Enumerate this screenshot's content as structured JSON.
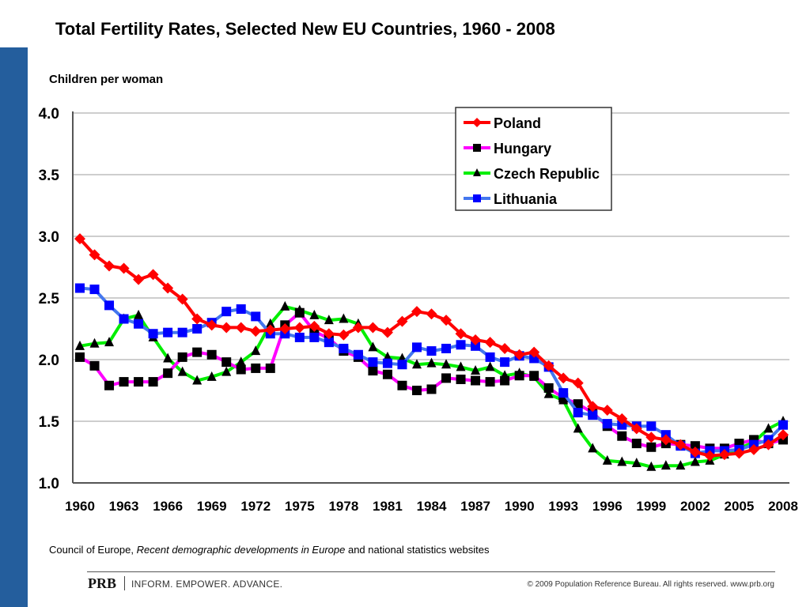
{
  "header": {
    "title": "Total Fertility Rates, Selected New EU Countries, 1960 - 2008",
    "y_unit_label": "Children per woman"
  },
  "footer": {
    "source_prefix": "Council of Europe, ",
    "source_italic": "Recent demographic developments in Europe",
    "source_suffix": " and national statistics websites",
    "brand": "PRB",
    "tagline": "INFORM. EMPOWER. ADVANCE.",
    "copyright": "© 2009 Population Reference Bureau. All rights reserved. www.prb.org"
  },
  "colors": {
    "sidebar": "#245e9d",
    "poland": "#ff0000",
    "hungary": "#ff00ff",
    "czech": "#00ee00",
    "lithuania": "#4477ee",
    "marker_lithuania": "#0000ff",
    "marker_dark": "#000000"
  },
  "chart_data": {
    "type": "line",
    "title": "Total Fertility Rates, Selected New EU Countries, 1960 - 2008",
    "xlabel": "",
    "ylabel": "Children per woman",
    "ylim": [
      1.0,
      4.0
    ],
    "xlim": [
      1960,
      2008
    ],
    "yticks": [
      "1.0",
      "1.5",
      "2.0",
      "2.5",
      "3.0",
      "3.5",
      "4.0"
    ],
    "ytick_values": [
      1.0,
      1.5,
      2.0,
      2.5,
      3.0,
      3.5,
      4.0
    ],
    "xticks": [
      "1960",
      "1963",
      "1966",
      "1969",
      "1972",
      "1975",
      "1978",
      "1981",
      "1984",
      "1987",
      "1990",
      "1993",
      "1996",
      "1999",
      "2002",
      "2005",
      "2008"
    ],
    "grid": true,
    "legend_position": "top-right",
    "x": [
      1960,
      1961,
      1962,
      1963,
      1964,
      1965,
      1966,
      1967,
      1968,
      1969,
      1970,
      1971,
      1972,
      1973,
      1974,
      1975,
      1976,
      1977,
      1978,
      1979,
      1980,
      1981,
      1982,
      1983,
      1984,
      1985,
      1986,
      1987,
      1988,
      1989,
      1990,
      1991,
      1992,
      1993,
      1994,
      1995,
      1996,
      1997,
      1998,
      1999,
      2000,
      2001,
      2002,
      2003,
      2004,
      2005,
      2006,
      2007,
      2008
    ],
    "series": [
      {
        "name": "Poland",
        "marker": "diamond",
        "color_key": "poland",
        "values": [
          2.98,
          2.85,
          2.76,
          2.74,
          2.65,
          2.69,
          2.58,
          2.49,
          2.33,
          2.28,
          2.26,
          2.26,
          2.23,
          2.24,
          2.25,
          2.26,
          2.27,
          2.21,
          2.2,
          2.26,
          2.26,
          2.22,
          2.31,
          2.39,
          2.37,
          2.32,
          2.21,
          2.16,
          2.14,
          2.09,
          2.04,
          2.06,
          1.95,
          1.85,
          1.81,
          1.62,
          1.59,
          1.52,
          1.44,
          1.37,
          1.35,
          1.31,
          1.25,
          1.22,
          1.23,
          1.24,
          1.27,
          1.31,
          1.39
        ]
      },
      {
        "name": "Hungary",
        "marker": "square",
        "color_key": "hungary",
        "values": [
          2.02,
          1.95,
          1.79,
          1.82,
          1.82,
          1.82,
          1.89,
          2.02,
          2.06,
          2.04,
          1.98,
          1.92,
          1.93,
          1.93,
          2.28,
          2.38,
          2.23,
          2.17,
          2.07,
          2.02,
          1.91,
          1.88,
          1.79,
          1.75,
          1.76,
          1.85,
          1.84,
          1.83,
          1.82,
          1.83,
          1.87,
          1.87,
          1.77,
          1.69,
          1.64,
          1.57,
          1.46,
          1.38,
          1.32,
          1.29,
          1.32,
          1.31,
          1.3,
          1.28,
          1.28,
          1.32,
          1.35,
          1.32,
          1.35
        ]
      },
      {
        "name": "Czech Republic",
        "marker": "triangle",
        "color_key": "czech",
        "values": [
          2.11,
          2.13,
          2.14,
          2.33,
          2.36,
          2.18,
          2.01,
          1.9,
          1.83,
          1.86,
          1.9,
          1.98,
          2.07,
          2.29,
          2.43,
          2.4,
          2.36,
          2.32,
          2.33,
          2.29,
          2.1,
          2.02,
          2.01,
          1.96,
          1.97,
          1.96,
          1.94,
          1.91,
          1.94,
          1.87,
          1.89,
          1.86,
          1.72,
          1.67,
          1.44,
          1.28,
          1.18,
          1.17,
          1.16,
          1.13,
          1.14,
          1.14,
          1.17,
          1.18,
          1.23,
          1.28,
          1.33,
          1.44,
          1.5
        ]
      },
      {
        "name": "Lithuania",
        "marker": "square",
        "color_key": "lithuania",
        "values": [
          2.58,
          2.57,
          2.44,
          2.33,
          2.29,
          2.21,
          2.22,
          2.22,
          2.25,
          2.3,
          2.39,
          2.41,
          2.35,
          2.21,
          2.21,
          2.18,
          2.18,
          2.14,
          2.09,
          2.04,
          1.98,
          1.97,
          1.96,
          2.1,
          2.07,
          2.09,
          2.12,
          2.11,
          2.02,
          1.98,
          2.03,
          2.01,
          1.94,
          1.73,
          1.57,
          1.55,
          1.48,
          1.47,
          1.46,
          1.46,
          1.39,
          1.3,
          1.24,
          1.26,
          1.26,
          1.27,
          1.31,
          1.35,
          1.47
        ]
      }
    ]
  }
}
